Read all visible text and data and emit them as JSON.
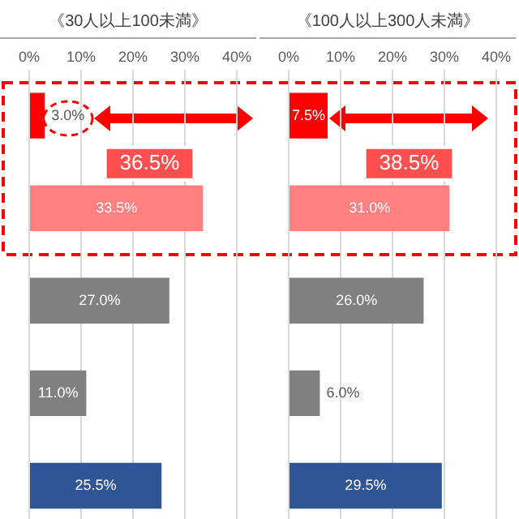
{
  "chart_data": [
    {
      "type": "bar",
      "title": "《30人以上100未満》",
      "orientation": "horizontal",
      "categories": [
        null,
        null,
        null,
        null,
        null
      ],
      "values": [
        3.0,
        33.5,
        27.0,
        11.0,
        25.5
      ],
      "colors": [
        "#ff0000",
        "#ff8080",
        "#808080",
        "#808080",
        "#2f5597"
      ],
      "xlim": [
        0,
        40
      ],
      "xticks": [
        {
          "value": 0,
          "label": "0%"
        },
        {
          "value": 10,
          "label": "10%"
        },
        {
          "value": 20,
          "label": "20%"
        },
        {
          "value": 30,
          "label": "30%"
        },
        {
          "value": 40,
          "label": "40%"
        }
      ],
      "grid": "x",
      "legend": false,
      "value_labels": [
        "3.0%",
        "33.5%",
        "27.0%",
        "11.0%",
        "25.5%"
      ],
      "annotations": [
        "36.5%"
      ]
    },
    {
      "type": "bar",
      "title": "《100人以上300人未満》",
      "orientation": "horizontal",
      "categories": [
        null,
        null,
        null,
        null,
        null
      ],
      "values": [
        7.5,
        31.0,
        26.0,
        6.0,
        29.5
      ],
      "colors": [
        "#ff0000",
        "#ff8080",
        "#808080",
        "#808080",
        "#2f5597"
      ],
      "xlim": [
        0,
        40
      ],
      "xticks": [
        {
          "value": 0,
          "label": "0%"
        },
        {
          "value": 10,
          "label": "10%"
        },
        {
          "value": 20,
          "label": "20%"
        },
        {
          "value": 30,
          "label": "30%"
        },
        {
          "value": 40,
          "label": "40%"
        }
      ],
      "grid": "x",
      "legend": false,
      "value_labels": [
        "7.5%",
        "31.0%",
        "26.0%",
        "6.0%",
        "29.5%"
      ],
      "annotations": [
        "38.5%"
      ]
    }
  ]
}
